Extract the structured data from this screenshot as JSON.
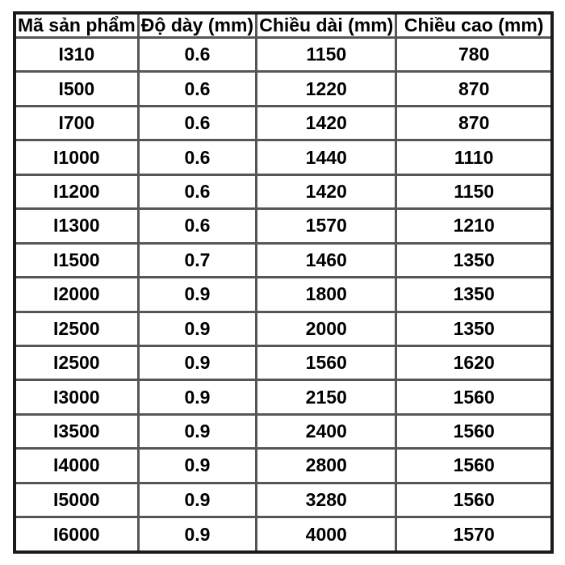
{
  "page": {
    "background": "#ffffff"
  },
  "chart_data": {
    "type": "table",
    "title": "",
    "columns": [
      "Mã sản phẩm",
      "Độ dày (mm)",
      "Chiều dài (mm)",
      "Chiều cao (mm)"
    ],
    "rows": [
      [
        "I310",
        "0.6",
        "1150",
        "780"
      ],
      [
        "I500",
        "0.6",
        "1220",
        "870"
      ],
      [
        "I700",
        "0.6",
        "1420",
        "870"
      ],
      [
        "I1000",
        "0.6",
        "1440",
        "1110"
      ],
      [
        "I1200",
        "0.6",
        "1420",
        "1150"
      ],
      [
        "I1300",
        "0.6",
        "1570",
        "1210"
      ],
      [
        "I1500",
        "0.7",
        "1460",
        "1350"
      ],
      [
        "I2000",
        "0.9",
        "1800",
        "1350"
      ],
      [
        "I2500",
        "0.9",
        "2000",
        "1350"
      ],
      [
        "I2500",
        "0.9",
        "1560",
        "1620"
      ],
      [
        "I3000",
        "0.9",
        "2150",
        "1560"
      ],
      [
        "I3500",
        "0.9",
        "2400",
        "1560"
      ],
      [
        "I4000",
        "0.9",
        "2800",
        "1560"
      ],
      [
        "I5000",
        "0.9",
        "3280",
        "1560"
      ],
      [
        "I6000",
        "0.9",
        "4000",
        "1570"
      ]
    ],
    "layout": {
      "grid": true,
      "header_row": true,
      "cell_alignment": "center"
    },
    "colors": {
      "text": "#000000",
      "inner_border": "#565656",
      "outer_border": "#1b1b1b",
      "background": "#ffffff"
    }
  }
}
